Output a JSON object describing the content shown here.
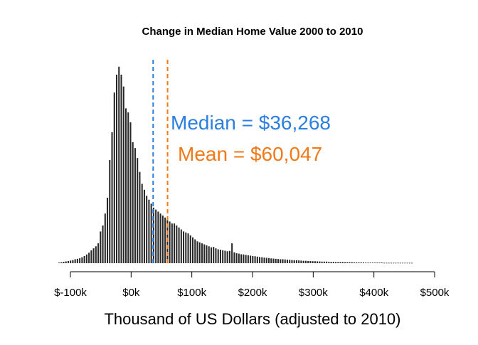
{
  "chart_data": {
    "type": "bar",
    "title": "Change in Median Home Value 2000 to 2010",
    "xlabel": "Thousand of US Dollars (adjusted to 2010)",
    "ylabel": "",
    "xlim": [
      -100,
      500
    ],
    "ylim": [
      0,
      1
    ],
    "bin_width": 3.8,
    "x_ticks": [
      -100,
      0,
      100,
      200,
      300,
      400,
      500
    ],
    "x_tick_labels": [
      "$-100k",
      "$0k",
      "$100k",
      "$200k",
      "$300k",
      "$400k",
      "$500k"
    ],
    "y_axis_shown": false,
    "grid": false,
    "bar_color": "#262626",
    "values": [
      0.003,
      0.005,
      0.007,
      0.009,
      0.011,
      0.013,
      0.016,
      0.02,
      0.022,
      0.025,
      0.03,
      0.036,
      0.044,
      0.053,
      0.065,
      0.075,
      0.085,
      0.1,
      0.16,
      0.19,
      0.25,
      0.33,
      0.52,
      0.66,
      0.86,
      0.95,
      0.99,
      0.95,
      0.89,
      0.78,
      0.76,
      0.71,
      0.61,
      0.58,
      0.53,
      0.46,
      0.4,
      0.37,
      0.34,
      0.32,
      0.3,
      0.28,
      0.27,
      0.26,
      0.25,
      0.24,
      0.23,
      0.22,
      0.21,
      0.2,
      0.2,
      0.19,
      0.18,
      0.17,
      0.16,
      0.155,
      0.15,
      0.14,
      0.13,
      0.12,
      0.11,
      0.105,
      0.1,
      0.095,
      0.09,
      0.085,
      0.08,
      0.082,
      0.075,
      0.07,
      0.068,
      0.065,
      0.063,
      0.06,
      0.062,
      0.1,
      0.055,
      0.05,
      0.048,
      0.045,
      0.044,
      0.042,
      0.04,
      0.038,
      0.036,
      0.035,
      0.033,
      0.031,
      0.03,
      0.028,
      0.027,
      0.026,
      0.024,
      0.023,
      0.022,
      0.021,
      0.02,
      0.02,
      0.019,
      0.018,
      0.017,
      0.016,
      0.015,
      0.015,
      0.014,
      0.013,
      0.012,
      0.012,
      0.011,
      0.011,
      0.01,
      0.01,
      0.009,
      0.009,
      0.008,
      0.008,
      0.008,
      0.007,
      0.007,
      0.007,
      0.006,
      0.006,
      0.006,
      0.006,
      0.005,
      0.005,
      0.005,
      0.005,
      0.004,
      0.004,
      0.004,
      0.004,
      0.004,
      0.003,
      0.003,
      0.003,
      0.003,
      0.003,
      0.003,
      0.003,
      0.003,
      0.002,
      0.002,
      0.002,
      0.002,
      0.002,
      0.002,
      0.002,
      0.002,
      0.002,
      0.002,
      0.002,
      0.002,
      0.002
    ],
    "reference_lines": [
      {
        "name": "Median",
        "x": 36.268,
        "color": "#2b7fe0",
        "style": "dashed",
        "label": "Median = $36,268"
      },
      {
        "name": "Mean",
        "x": 60.047,
        "color": "#f07a1a",
        "style": "dashed",
        "label": "Mean = $60,047"
      }
    ]
  }
}
